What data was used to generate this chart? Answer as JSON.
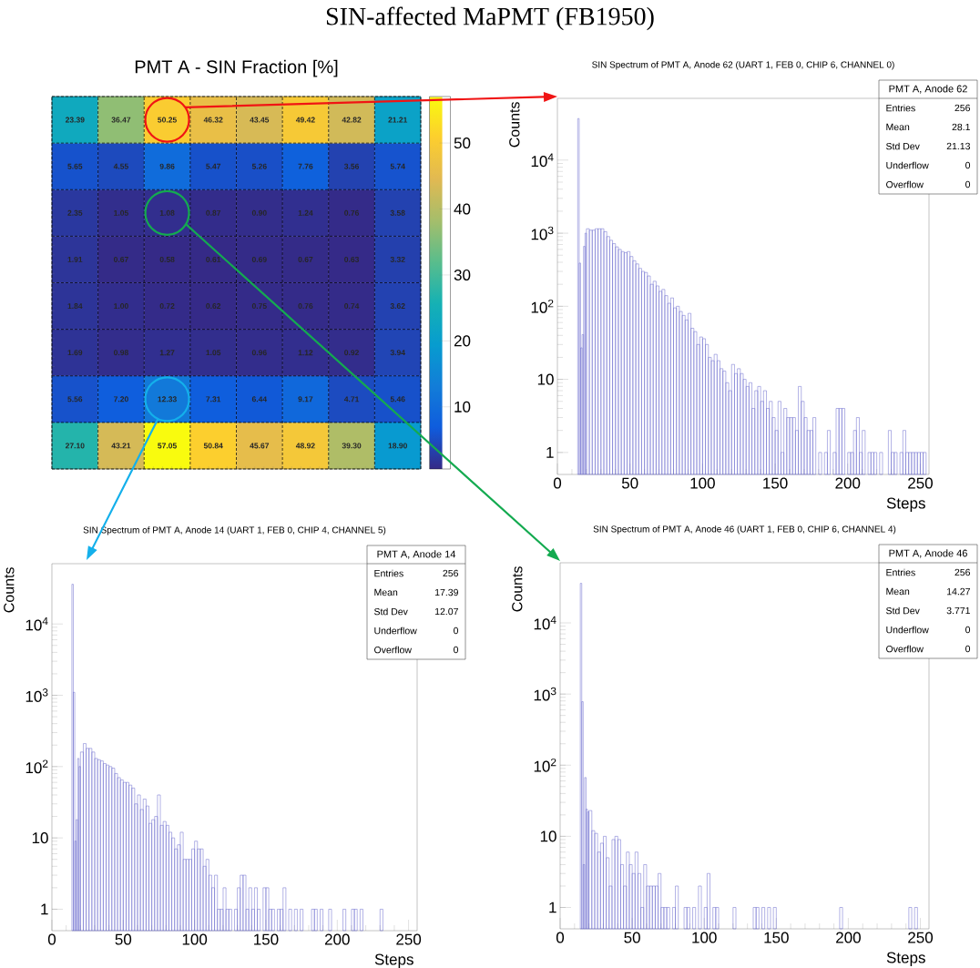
{
  "chart_data": [
    {
      "type": "heatmap",
      "title": "PMT A - SIN Fraction [%]",
      "annotations": [
        "SIN-affected MaPMT (FB1950)"
      ],
      "categories": [
        null,
        null,
        null,
        null,
        null,
        null,
        null,
        null
      ],
      "y_categories": [
        null,
        null,
        null,
        null,
        null,
        null,
        null,
        null
      ],
      "cells": [
        [
          23.39,
          36.47,
          50.25,
          46.32,
          43.45,
          49.42,
          42.82,
          21.21
        ],
        [
          5.65,
          4.55,
          9.86,
          5.47,
          5.26,
          7.76,
          3.56,
          5.74
        ],
        [
          2.35,
          1.05,
          1.08,
          0.87,
          0.9,
          1.24,
          0.76,
          3.58
        ],
        [
          1.91,
          0.67,
          0.58,
          0.61,
          0.69,
          0.67,
          0.63,
          3.32
        ],
        [
          1.84,
          1.0,
          0.72,
          0.62,
          0.75,
          0.76,
          0.74,
          3.62
        ],
        [
          1.69,
          0.98,
          1.27,
          1.05,
          0.96,
          1.12,
          0.92,
          3.94
        ],
        [
          5.56,
          7.2,
          12.33,
          7.31,
          6.44,
          9.17,
          4.71,
          5.46
        ],
        [
          27.1,
          43.21,
          57.05,
          50.84,
          45.67,
          48.92,
          39.3,
          18.9
        ]
      ],
      "cell_labels": [
        [
          "23.39",
          "36.47",
          "50.25",
          "46.32",
          "43.45",
          "49.42",
          "42.82",
          "21.21"
        ],
        [
          "5.65",
          "4.55",
          "9.86",
          "5.47",
          "5.26",
          "7.76",
          "3.56",
          "5.74"
        ],
        [
          "2.35",
          "1.05",
          "1.08",
          "0.87",
          "0.90",
          "1.24",
          "0.76",
          "3.58"
        ],
        [
          "1.91",
          "0.67",
          "0.58",
          "0.61",
          "0.69",
          "0.67",
          "0.63",
          "3.32"
        ],
        [
          "1.84",
          "1.00",
          "0.72",
          "0.62",
          "0.75",
          "0.76",
          "0.74",
          "3.62"
        ],
        [
          "1.69",
          "0.98",
          "1.27",
          "1.05",
          "0.96",
          "1.12",
          "0.92",
          "3.94"
        ],
        [
          "5.56",
          "7.20",
          "12.33",
          "7.31",
          "6.44",
          "9.17",
          "4.71",
          "5.46"
        ],
        [
          "27.10",
          "43.21",
          "57.05",
          "50.84",
          "45.67",
          "48.92",
          "39.30",
          "18.90"
        ]
      ],
      "data_labels": true,
      "clim": [
        0.58,
        57.05
      ],
      "cticks": [
        10,
        20,
        30,
        40,
        50
      ],
      "grid": true
    },
    {
      "type": "histogram",
      "title": "SIN Spectrum of PMT A, Anode 62 (UART 1, FEB 0, CHIP 6, CHANNEL 0)",
      "xlabel": "Steps",
      "ylabel": "Counts",
      "color": "#6666cc",
      "log": "y",
      "annotations": [
        "PMT A, Anode 62",
        "Entries",
        "256",
        "Mean",
        "28.1",
        "Std Dev",
        "21.13",
        "Underflow",
        "0",
        "Overflow",
        "0"
      ],
      "xlim": [
        0,
        256
      ],
      "ylim": [
        0.5,
        70000
      ],
      "xticks": [
        0,
        50,
        100,
        150,
        200,
        250
      ],
      "yticks": [
        1,
        10,
        {
          "value": 100,
          "label": "10$^{2}$"
        },
        {
          "value": 1000,
          "label": "10$^{3}$"
        },
        {
          "value": 10000,
          "label": "10$^{4}$"
        }
      ],
      "bins": [
        14,
        15,
        16,
        17,
        18,
        19,
        20,
        22,
        24,
        26,
        28,
        30,
        32,
        34,
        36,
        38,
        40,
        42,
        44,
        46,
        48,
        50,
        52,
        54,
        56,
        58,
        60,
        62,
        64,
        66,
        68,
        70,
        72,
        74,
        76,
        78,
        80,
        82,
        84,
        86,
        88,
        90,
        92,
        94,
        96,
        98,
        100,
        102,
        104,
        106,
        108,
        110,
        112,
        114,
        116,
        118,
        120,
        122,
        124,
        126,
        128,
        130,
        132,
        134,
        136,
        138,
        140,
        142,
        144,
        146,
        148,
        150,
        152,
        154,
        156,
        158,
        160,
        162,
        164,
        166,
        168,
        170,
        172,
        174,
        176,
        178,
        180,
        182,
        184,
        186,
        188,
        190,
        192,
        194,
        196,
        198,
        200,
        202,
        204,
        206,
        208,
        210,
        212,
        214,
        216,
        218,
        220,
        222,
        224,
        228,
        230,
        232,
        234,
        236,
        238,
        240,
        242,
        244,
        246,
        248,
        250,
        252,
        254
      ],
      "values": [
        37000,
        390,
        27,
        41,
        660,
        1000,
        1150,
        1100,
        1100,
        1150,
        1150,
        1150,
        1050,
        900,
        800,
        720,
        650,
        600,
        560,
        540,
        560,
        480,
        420,
        380,
        330,
        300,
        290,
        260,
        200,
        220,
        190,
        160,
        170,
        140,
        110,
        130,
        95,
        100,
        85,
        75,
        65,
        80,
        50,
        45,
        30,
        38,
        36,
        30,
        20,
        18,
        22,
        18,
        14,
        13,
        9,
        7,
        16,
        12,
        14,
        12,
        10,
        8,
        9,
        4,
        7,
        8,
        5,
        7,
        4,
        5,
        3,
        2,
        5,
        1,
        4,
        3,
        3,
        3,
        2,
        8,
        5,
        3,
        2,
        2,
        3,
        null,
        1,
        null,
        1,
        2,
        null,
        1,
        4,
        4,
        4,
        null,
        1,
        1,
        2,
        3,
        1,
        2,
        null,
        1,
        1,
        1,
        null,
        1,
        null,
        2,
        1,
        1,
        null,
        1,
        2,
        1,
        1,
        1,
        1,
        1,
        1,
        1
      ]
    },
    {
      "type": "histogram",
      "title": "SIN Spectrum of PMT A, Anode 14 (UART 1, FEB 0, CHIP 4, CHANNEL 5)",
      "xlabel": "Steps",
      "ylabel": "Counts",
      "color": "#6666cc",
      "log": "y",
      "annotations": [
        "PMT A, Anode 14",
        "Entries",
        "256",
        "Mean",
        "17.39",
        "Std Dev",
        "12.07",
        "Underflow",
        "0",
        "Overflow",
        "0"
      ],
      "xlim": [
        0,
        256
      ],
      "ylim": [
        0.5,
        70000
      ],
      "xticks": [
        0,
        50,
        100,
        150,
        200,
        250
      ],
      "yticks": [
        1,
        10,
        {
          "value": 100,
          "label": "10$^{2}$"
        },
        {
          "value": 1000,
          "label": "10$^{3}$"
        },
        {
          "value": 10000,
          "label": "10$^{4}$"
        }
      ],
      "bins": [
        14,
        15,
        16,
        17,
        18,
        19,
        20,
        22,
        24,
        26,
        28,
        30,
        32,
        34,
        36,
        38,
        40,
        42,
        44,
        46,
        48,
        50,
        52,
        54,
        56,
        58,
        60,
        62,
        64,
        66,
        68,
        70,
        72,
        74,
        76,
        78,
        80,
        82,
        84,
        86,
        88,
        90,
        92,
        94,
        96,
        98,
        100,
        102,
        104,
        106,
        108,
        110,
        112,
        114,
        116,
        118,
        120,
        122,
        124,
        126,
        128,
        130,
        132,
        134,
        136,
        138,
        140,
        142,
        144,
        146,
        148,
        150,
        152,
        154,
        156,
        158,
        160,
        162,
        164,
        166,
        168,
        170,
        172,
        174,
        176,
        182,
        184,
        186,
        188,
        190,
        194,
        196,
        204,
        206,
        210,
        212,
        214,
        216,
        218,
        230,
        232
      ],
      "values": [
        36000,
        1100,
        9,
        18,
        130,
        100,
        160,
        210,
        180,
        180,
        160,
        130,
        125,
        120,
        110,
        105,
        100,
        95,
        80,
        70,
        65,
        60,
        60,
        55,
        50,
        30,
        40,
        25,
        35,
        28,
        16,
        18,
        20,
        40,
        15,
        17,
        15,
        12,
        10,
        7,
        8,
        12,
        5,
        5,
        5,
        7,
        9,
        7,
        7,
        4,
        5,
        3,
        2,
        3,
        1,
        1,
        2,
        1,
        1,
        null,
        1,
        2,
        3,
        3,
        1,
        2,
        1,
        2,
        1,
        null,
        2,
        2,
        1,
        1,
        null,
        1,
        1,
        2,
        null,
        1,
        null,
        1,
        null,
        1,
        null,
        1,
        1,
        null,
        1,
        null,
        1,
        null,
        1,
        null,
        1,
        1,
        null,
        1,
        null,
        1
      ]
    },
    {
      "type": "histogram",
      "title": "SIN Spectrum of PMT A, Anode 46 (UART 1, FEB 0, CHIP 6, CHANNEL 4)",
      "xlabel": "Steps",
      "ylabel": "Counts",
      "color": "#6666cc",
      "log": "y",
      "annotations": [
        "PMT A, Anode 46",
        "Entries",
        "256",
        "Mean",
        "14.27",
        "Std Dev",
        "3.771",
        "Underflow",
        "0",
        "Overflow",
        "0"
      ],
      "xlim": [
        0,
        256
      ],
      "ylim": [
        0.5,
        70000
      ],
      "xticks": [
        0,
        50,
        100,
        150,
        200,
        250
      ],
      "yticks": [
        1,
        10,
        {
          "value": 100,
          "label": "10$^{2}$"
        },
        {
          "value": 1000,
          "label": "10$^{3}$"
        },
        {
          "value": 10000,
          "label": "10$^{4}$"
        }
      ],
      "bins": [
        14,
        15,
        16,
        17,
        18,
        19,
        20,
        22,
        24,
        26,
        28,
        30,
        32,
        34,
        36,
        38,
        40,
        42,
        44,
        46,
        48,
        50,
        52,
        54,
        56,
        58,
        60,
        62,
        64,
        66,
        68,
        70,
        72,
        74,
        76,
        78,
        80,
        82,
        86,
        88,
        90,
        92,
        94,
        96,
        98,
        100,
        102,
        104,
        106,
        108,
        110,
        120,
        122,
        134,
        136,
        138,
        140,
        142,
        144,
        146,
        148,
        150,
        194,
        196,
        242,
        244,
        246,
        248
      ],
      "values": [
        36000,
        780,
        4,
        67,
        24,
        22,
        23,
        12,
        11,
        6,
        8,
        10,
        5,
        2,
        9,
        10,
        9,
        4,
        2,
        6,
        4,
        3,
        6,
        3,
        1,
        4,
        2,
        2,
        2,
        2,
        3,
        1,
        1,
        1,
        null,
        1,
        2,
        null,
        1,
        1,
        null,
        1,
        null,
        2,
        null,
        1,
        3,
        null,
        1,
        1,
        null,
        1,
        null,
        1,
        1,
        null,
        1,
        null,
        1,
        null,
        1,
        null,
        1,
        null,
        1,
        null,
        1
      ]
    }
  ]
}
